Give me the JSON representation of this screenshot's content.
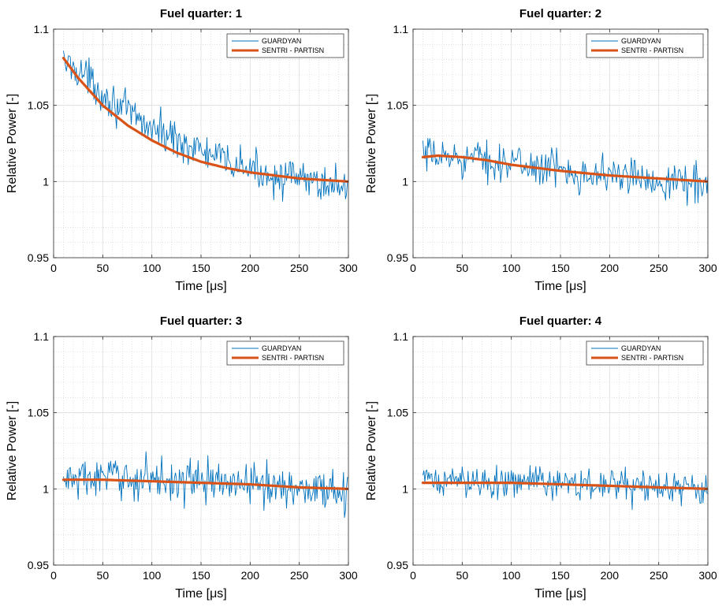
{
  "chart_data": [
    {
      "type": "line",
      "title": "Fuel quarter: 1",
      "xlabel": "Time [μs]",
      "ylabel": "Relative Power [-]",
      "xlim": [
        0,
        300
      ],
      "ylim": [
        0.95,
        1.1
      ],
      "xticks": [
        "0",
        "50",
        "100",
        "150",
        "200",
        "250",
        "300"
      ],
      "yticks": [
        "0.95",
        "1",
        "1.05",
        "1.1"
      ],
      "grid": true,
      "legend_position": "top-right",
      "series": [
        {
          "name": "GUARDYAN",
          "color": "#0072BD",
          "style": "noisy",
          "x": [
            10,
            25,
            50,
            75,
            100,
            125,
            150,
            175,
            200,
            225,
            250,
            275,
            300
          ],
          "y": [
            1.078,
            1.074,
            1.058,
            1.045,
            1.035,
            1.028,
            1.02,
            1.013,
            1.008,
            1.004,
            1.001,
            0.999,
            0.997
          ],
          "noise_amplitude": 0.008
        },
        {
          "name": "SENTRI - PARTISN",
          "color": "#D95319",
          "style": "smooth",
          "x": [
            10,
            25,
            50,
            75,
            100,
            125,
            150,
            175,
            200,
            225,
            250,
            275,
            300
          ],
          "y": [
            1.081,
            1.068,
            1.05,
            1.037,
            1.027,
            1.019,
            1.013,
            1.009,
            1.006,
            1.004,
            1.002,
            1.001,
            1.0
          ]
        }
      ]
    },
    {
      "type": "line",
      "title": "Fuel quarter: 2",
      "xlabel": "Time [μs]",
      "ylabel": "Relative Power [-]",
      "xlim": [
        0,
        300
      ],
      "ylim": [
        0.95,
        1.1
      ],
      "xticks": [
        "0",
        "50",
        "100",
        "150",
        "200",
        "250",
        "300"
      ],
      "yticks": [
        "0.95",
        "1",
        "1.05",
        "1.1"
      ],
      "grid": true,
      "legend_position": "top-right",
      "series": [
        {
          "name": "GUARDYAN",
          "color": "#0072BD",
          "style": "noisy",
          "x": [
            10,
            50,
            100,
            150,
            200,
            250,
            300
          ],
          "y": [
            1.016,
            1.016,
            1.012,
            1.008,
            1.004,
            1.001,
            0.999
          ],
          "noise_amplitude": 0.008
        },
        {
          "name": "SENTRI - PARTISN",
          "color": "#D95319",
          "style": "smooth",
          "x": [
            10,
            25,
            50,
            75,
            100,
            150,
            200,
            250,
            300
          ],
          "y": [
            1.016,
            1.017,
            1.016,
            1.014,
            1.011,
            1.007,
            1.004,
            1.002,
            1.0
          ]
        }
      ]
    },
    {
      "type": "line",
      "title": "Fuel quarter: 3",
      "xlabel": "Time [μs]",
      "ylabel": "Relative Power [-]",
      "xlim": [
        0,
        300
      ],
      "ylim": [
        0.95,
        1.1
      ],
      "xticks": [
        "0",
        "50",
        "100",
        "150",
        "200",
        "250",
        "300"
      ],
      "yticks": [
        "0.95",
        "1",
        "1.05",
        "1.1"
      ],
      "grid": true,
      "legend_position": "top-right",
      "series": [
        {
          "name": "GUARDYAN",
          "color": "#0072BD",
          "style": "noisy",
          "x": [
            10,
            50,
            100,
            150,
            200,
            250,
            300
          ],
          "y": [
            1.006,
            1.007,
            1.007,
            1.005,
            1.003,
            1.001,
            0.999
          ],
          "noise_amplitude": 0.009
        },
        {
          "name": "SENTRI - PARTISN",
          "color": "#D95319",
          "style": "smooth",
          "x": [
            10,
            50,
            100,
            150,
            200,
            250,
            300
          ],
          "y": [
            1.006,
            1.006,
            1.005,
            1.004,
            1.003,
            1.001,
            1.0
          ]
        }
      ]
    },
    {
      "type": "line",
      "title": "Fuel quarter: 4",
      "xlabel": "Time [μs]",
      "ylabel": "Relative Power [-]",
      "xlim": [
        0,
        300
      ],
      "ylim": [
        0.95,
        1.1
      ],
      "xticks": [
        "0",
        "50",
        "100",
        "150",
        "200",
        "250",
        "300"
      ],
      "yticks": [
        "0.95",
        "1",
        "1.05",
        "1.1"
      ],
      "grid": true,
      "legend_position": "top-right",
      "series": [
        {
          "name": "GUARDYAN",
          "color": "#0072BD",
          "style": "noisy",
          "x": [
            10,
            50,
            100,
            150,
            200,
            250,
            300
          ],
          "y": [
            1.005,
            1.005,
            1.005,
            1.004,
            1.002,
            1.001,
            0.999
          ],
          "noise_amplitude": 0.007
        },
        {
          "name": "SENTRI - PARTISN",
          "color": "#D95319",
          "style": "smooth",
          "x": [
            10,
            50,
            100,
            150,
            200,
            250,
            300
          ],
          "y": [
            1.004,
            1.004,
            1.004,
            1.003,
            1.002,
            1.001,
            1.0
          ]
        }
      ]
    }
  ]
}
